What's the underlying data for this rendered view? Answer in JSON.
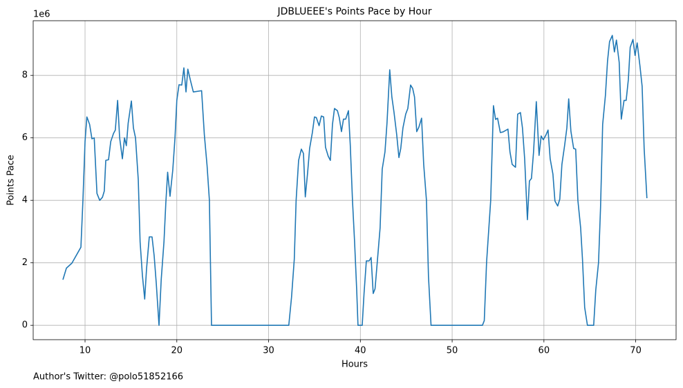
{
  "chart_data": {
    "type": "line",
    "title": "JDBLUEEE's Points Pace by Hour",
    "xlabel": "Hours",
    "ylabel": "Points Pace",
    "y_offset_label": "1e6",
    "footer": "Author's Twitter: @polo51852166",
    "color": "#1f77b4",
    "grid": true,
    "xlim": [
      4.35,
      74.4
    ],
    "ylim": [
      -0.46,
      9.75
    ],
    "xticks": [
      10,
      20,
      30,
      40,
      50,
      60,
      70
    ],
    "yticks": [
      0,
      2,
      4,
      6,
      8
    ],
    "x": [
      7.59,
      7.97,
      8.57,
      9.55,
      9.77,
      10.0,
      10.2,
      10.5,
      10.75,
      11.0,
      11.3,
      11.6,
      11.9,
      12.1,
      12.26,
      12.56,
      12.8,
      13.1,
      13.3,
      13.55,
      13.77,
      14.07,
      14.3,
      14.5,
      14.7,
      15.05,
      15.27,
      15.5,
      15.8,
      16.0,
      16.25,
      16.5,
      16.7,
      17.0,
      17.3,
      17.53,
      17.76,
      18.06,
      18.3,
      18.6,
      18.8,
      19.0,
      19.26,
      19.56,
      19.8,
      20.0,
      20.24,
      20.54,
      20.77,
      21.0,
      21.2,
      21.5,
      21.8,
      22.7,
      23.0,
      23.3,
      23.55,
      23.78,
      32.2,
      32.5,
      32.8,
      33.0,
      33.27,
      33.57,
      33.8,
      34.0,
      34.25,
      34.47,
      34.77,
      35.0,
      35.2,
      35.5,
      35.75,
      36.0,
      36.2,
      36.5,
      36.73,
      36.96,
      37.18,
      37.5,
      37.7,
      37.94,
      38.16,
      38.4,
      38.7,
      38.9,
      39.14,
      39.37,
      39.6,
      39.74,
      40.2,
      40.4,
      40.65,
      40.95,
      41.17,
      41.4,
      41.6,
      41.9,
      42.15,
      42.38,
      42.68,
      42.9,
      43.2,
      43.43,
      43.66,
      43.96,
      44.2,
      44.4,
      44.64,
      44.94,
      45.17,
      45.47,
      45.7,
      45.9,
      46.14,
      46.37,
      46.67,
      46.9,
      47.2,
      47.42,
      47.7,
      53.3,
      53.5,
      53.75,
      54.2,
      54.5,
      54.73,
      54.95,
      55.25,
      55.55,
      56.08,
      56.3,
      56.54,
      56.9,
      57.14,
      57.44,
      57.66,
      57.9,
      58.2,
      58.42,
      58.64,
      58.87,
      59.17,
      59.47,
      59.7,
      59.93,
      60.2,
      60.45,
      60.68,
      60.98,
      61.2,
      61.5,
      61.73,
      61.96,
      62.26,
      62.5,
      62.7,
      62.94,
      63.24,
      63.46,
      63.7,
      64.0,
      64.2,
      64.44,
      64.74,
      65.42,
      65.65,
      65.95,
      66.17,
      66.4,
      66.7,
      66.93,
      67.15,
      67.45,
      67.68,
      67.9,
      68.2,
      68.43,
      68.73,
      68.96,
      69.2,
      69.4,
      69.7,
      69.93,
      70.16,
      70.46,
      70.7,
      70.92,
      71.22
    ],
    "values": [
      1.46,
      1.83,
      1.99,
      2.5,
      4.0,
      5.88,
      6.67,
      6.43,
      5.97,
      6.0,
      4.22,
      4.0,
      4.1,
      4.3,
      5.28,
      5.3,
      5.88,
      6.14,
      6.25,
      7.2,
      6.0,
      5.33,
      6.0,
      5.75,
      6.47,
      7.18,
      6.32,
      6.0,
      4.66,
      2.67,
      1.6,
      0.84,
      1.8,
      2.83,
      2.83,
      2.23,
      1.35,
      0,
      1.46,
      2.67,
      3.9,
      4.9,
      4.13,
      4.97,
      6.0,
      7.2,
      7.7,
      7.69,
      8.24,
      7.47,
      8.2,
      7.82,
      7.47,
      7.51,
      6.1,
      5.1,
      4.0,
      0,
      0,
      0.9,
      2.12,
      4.0,
      5.28,
      5.64,
      5.5,
      4.11,
      4.88,
      5.66,
      6.17,
      6.67,
      6.65,
      6.39,
      6.7,
      6.67,
      5.7,
      5.41,
      5.28,
      6.43,
      6.94,
      6.87,
      6.65,
      6.2,
      6.6,
      6.6,
      6.87,
      5.77,
      4.0,
      2.67,
      1.13,
      0,
      0,
      1.02,
      2.06,
      2.06,
      2.17,
      1.02,
      1.17,
      2.23,
      3.12,
      5.0,
      5.55,
      6.47,
      8.18,
      7.31,
      6.83,
      6.1,
      5.37,
      5.66,
      6.32,
      6.76,
      6.94,
      7.69,
      7.58,
      7.31,
      6.2,
      6.34,
      6.63,
      5.15,
      4.0,
      1.57,
      0,
      0,
      0.15,
      2.01,
      4.0,
      7.03,
      6.59,
      6.63,
      6.17,
      6.19,
      6.28,
      5.55,
      5.15,
      5.06,
      6.76,
      6.81,
      6.32,
      5.33,
      3.38,
      4.62,
      4.7,
      5.55,
      7.16,
      5.44,
      6.06,
      5.94,
      6.08,
      6.25,
      5.33,
      4.84,
      3.98,
      3.82,
      4.04,
      5.15,
      5.77,
      6.32,
      7.25,
      6.21,
      5.66,
      5.64,
      4.0,
      3.12,
      2.12,
      0.57,
      0,
      0,
      1.13,
      2.01,
      3.78,
      6.43,
      7.36,
      8.46,
      9.08,
      9.28,
      8.75,
      9.13,
      8.42,
      6.6,
      7.2,
      7.2,
      7.87,
      8.9,
      9.15,
      8.64,
      9.04,
      8.31,
      7.65,
      5.66,
      4.07
    ]
  }
}
